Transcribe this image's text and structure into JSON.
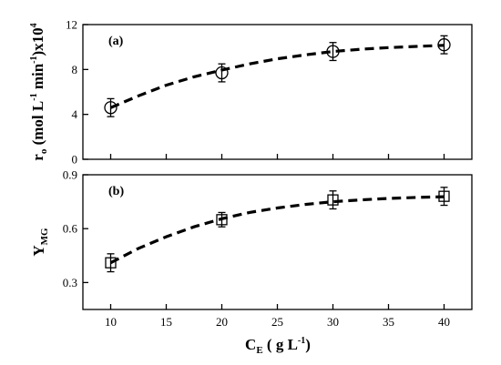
{
  "chart_data": [
    {
      "type": "scatter",
      "panel_label": "(a)",
      "ylabel": {
        "main": "r",
        "sub": "o",
        "text": " (mol L",
        "sup1": "-1",
        "text2": " min",
        "sup2": "-1",
        "text3": ")x10",
        "sup3": "4"
      },
      "xlim": [
        7.5,
        42.5
      ],
      "ylim": [
        0,
        12
      ],
      "yticks": [
        0,
        4,
        8,
        12
      ],
      "marker": "circle",
      "x": [
        10,
        20,
        30,
        40
      ],
      "y": [
        4.6,
        7.7,
        9.6,
        10.2
      ],
      "yerr": [
        0.8,
        0.8,
        0.8,
        0.8
      ],
      "fit": {
        "style": "dashed",
        "x": [
          10,
          12.5,
          15,
          17.5,
          20,
          22.5,
          25,
          27.5,
          30,
          32.5,
          35,
          37.5,
          40
        ],
        "y": [
          4.6,
          5.65,
          6.6,
          7.35,
          7.95,
          8.5,
          8.95,
          9.3,
          9.6,
          9.8,
          9.95,
          10.05,
          10.15
        ]
      }
    },
    {
      "type": "scatter",
      "panel_label": "(b)",
      "ylabel": {
        "main": "Y",
        "sub": "MG"
      },
      "xlim": [
        7.5,
        42.5
      ],
      "ylim": [
        0.15,
        0.9
      ],
      "yticks": [
        0.3,
        0.6,
        0.9
      ],
      "ytick_labels": [
        "0.3",
        "0.6",
        "0.9"
      ],
      "xticks": [
        10,
        15,
        20,
        25,
        30,
        35,
        40
      ],
      "xlabel": {
        "main": "C",
        "sub": "E",
        "text": " ( g L",
        "sup": "-1",
        "text2": ")"
      },
      "marker": "square",
      "x": [
        10,
        20,
        30,
        40
      ],
      "y": [
        0.41,
        0.65,
        0.76,
        0.78
      ],
      "yerr": [
        0.05,
        0.04,
        0.05,
        0.05
      ],
      "fit": {
        "style": "dashed",
        "x": [
          10,
          12.5,
          15,
          17.5,
          20,
          22.5,
          25,
          27.5,
          30,
          32.5,
          35,
          37.5,
          40
        ],
        "y": [
          0.41,
          0.49,
          0.555,
          0.61,
          0.655,
          0.69,
          0.715,
          0.735,
          0.75,
          0.76,
          0.768,
          0.774,
          0.778
        ]
      }
    }
  ]
}
